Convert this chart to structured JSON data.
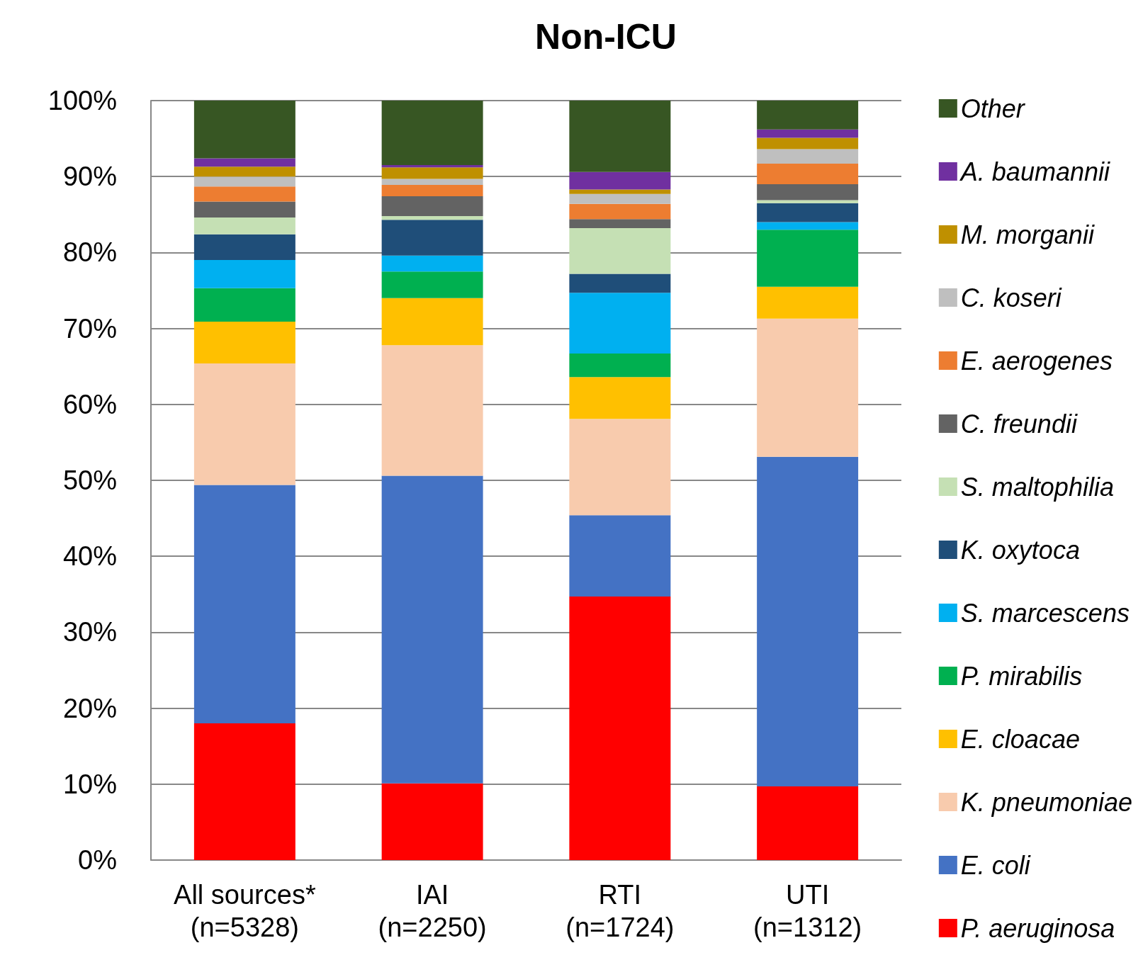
{
  "chart_data": {
    "type": "bar",
    "title": "Non-ICU",
    "stacked": true,
    "grid": "y",
    "legend": "right",
    "categories": [
      "All sources*\n(n=5328)",
      "IAI\n(n=2250)",
      "RTI\n(n=1724)",
      "UTI\n(n=1312)"
    ],
    "ylim": [
      0,
      100
    ],
    "yticks": [
      {
        "value": 0,
        "label": "0%"
      },
      {
        "value": 10,
        "label": "10%"
      },
      {
        "value": 20,
        "label": "20%"
      },
      {
        "value": 30,
        "label": "30%"
      },
      {
        "value": 40,
        "label": "40%"
      },
      {
        "value": 50,
        "label": "50%"
      },
      {
        "value": 60,
        "label": "60%"
      },
      {
        "value": 70,
        "label": "70%"
      },
      {
        "value": 80,
        "label": "80%"
      },
      {
        "value": 90,
        "label": "90%"
      },
      {
        "value": 100,
        "label": "100%"
      }
    ],
    "series": [
      {
        "name": "P. aeruginosa",
        "color": "#ff0000",
        "values": [
          18.0,
          10.1,
          34.7,
          9.7
        ]
      },
      {
        "name": "E. coli",
        "color": "#4472c4",
        "values": [
          31.4,
          40.5,
          10.7,
          43.4
        ]
      },
      {
        "name": "K. pneumoniae",
        "color": "#f8cbad",
        "values": [
          16.0,
          17.2,
          12.7,
          18.2
        ]
      },
      {
        "name": "E. cloacae",
        "color": "#ffc000",
        "values": [
          5.5,
          6.2,
          5.5,
          4.2
        ]
      },
      {
        "name": "P. mirabilis",
        "color": "#00b050",
        "values": [
          4.4,
          3.5,
          3.1,
          7.5
        ]
      },
      {
        "name": "S. marcescens",
        "color": "#00b0f0",
        "values": [
          3.7,
          2.1,
          8.0,
          1.0
        ]
      },
      {
        "name": "K. oxytoca",
        "color": "#1f4e79",
        "values": [
          3.4,
          4.7,
          2.5,
          2.5
        ]
      },
      {
        "name": "S. maltophilia",
        "color": "#c5e0b4",
        "values": [
          2.2,
          0.5,
          6.0,
          0.4
        ]
      },
      {
        "name": "C. freundii",
        "color": "#636363",
        "values": [
          2.1,
          2.6,
          1.2,
          2.1
        ]
      },
      {
        "name": "E. aerogenes",
        "color": "#ed7d31",
        "values": [
          2.0,
          1.5,
          2.0,
          2.7
        ]
      },
      {
        "name": "C. koseri",
        "color": "#bfbfbf",
        "values": [
          1.3,
          0.8,
          1.3,
          1.9
        ]
      },
      {
        "name": "M. morganii",
        "color": "#bf9000",
        "values": [
          1.3,
          1.5,
          0.6,
          1.5
        ]
      },
      {
        "name": "A. baumannii",
        "color": "#7030a0",
        "values": [
          1.1,
          0.3,
          2.3,
          1.1
        ]
      },
      {
        "name": "Other",
        "color": "#375623",
        "values": [
          7.6,
          8.5,
          9.4,
          3.8
        ]
      }
    ]
  }
}
